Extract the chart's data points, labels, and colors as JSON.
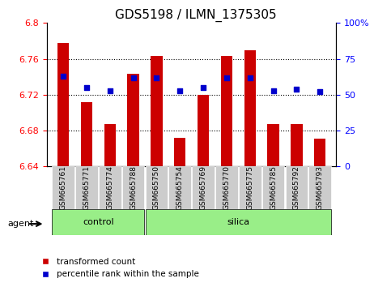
{
  "title": "GDS5198 / ILMN_1375305",
  "samples": [
    "GSM665761",
    "GSM665771",
    "GSM665774",
    "GSM665788",
    "GSM665750",
    "GSM665754",
    "GSM665769",
    "GSM665770",
    "GSM665775",
    "GSM665785",
    "GSM665792",
    "GSM665793"
  ],
  "bar_values": [
    6.778,
    6.712,
    6.687,
    6.743,
    6.763,
    6.672,
    6.72,
    6.763,
    6.77,
    6.687,
    6.687,
    6.671
  ],
  "dot_values": [
    63,
    55,
    53,
    62,
    62,
    53,
    55,
    62,
    62,
    53,
    54,
    52
  ],
  "bar_bottom": 6.64,
  "ylim_left": [
    6.64,
    6.8
  ],
  "ylim_right": [
    0,
    100
  ],
  "yticks_left": [
    6.64,
    6.68,
    6.72,
    6.76,
    6.8
  ],
  "yticks_right": [
    0,
    25,
    50,
    75,
    100
  ],
  "bar_color": "#cc0000",
  "dot_color": "#0000cc",
  "grid_color": "#000000",
  "control_group": [
    "GSM665761",
    "GSM665771",
    "GSM665774",
    "GSM665788"
  ],
  "silica_group": [
    "GSM665750",
    "GSM665754",
    "GSM665769",
    "GSM665770",
    "GSM665775",
    "GSM665785",
    "GSM665792",
    "GSM665793"
  ],
  "control_label": "control",
  "silica_label": "silica",
  "agent_label": "agent",
  "legend_bar_label": "transformed count",
  "legend_dot_label": "percentile rank within the sample",
  "group_bg_color": "#99ee88",
  "tick_area_color": "#cccccc",
  "figsize": [
    4.83,
    3.54
  ],
  "dpi": 100
}
